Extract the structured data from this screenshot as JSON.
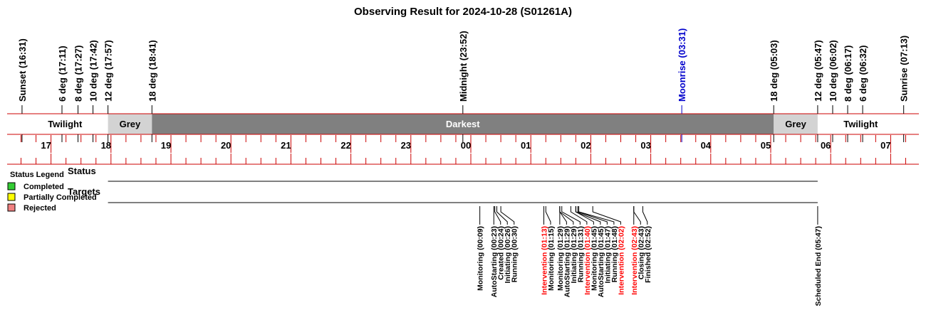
{
  "title": "Observing Result for 2024-10-28 (S01261A)",
  "chart_data": {
    "type": "timeline",
    "axis": {
      "hour_labels": [
        "17",
        "18",
        "19",
        "20",
        "21",
        "22",
        "23",
        "00",
        "01",
        "02",
        "03",
        "04",
        "05",
        "06",
        "07"
      ],
      "hour_values": [
        17,
        18,
        19,
        20,
        21,
        22,
        23,
        24,
        25,
        26,
        27,
        28,
        29,
        30,
        31
      ],
      "range": [
        16.42,
        31.35
      ]
    },
    "twilight_markers": [
      {
        "label": "Sunset (16:31)",
        "t": 16.517
      },
      {
        "label": "6 deg (17:11)",
        "t": 17.183
      },
      {
        "label": "8 deg (17:27)",
        "t": 17.45
      },
      {
        "label": "10 deg (17:42)",
        "t": 17.7
      },
      {
        "label": "12 deg (17:57)",
        "t": 17.95
      },
      {
        "label": "18 deg (18:41)",
        "t": 18.683
      },
      {
        "label": "Midnight (23:52)",
        "t": 23.867
      },
      {
        "label": "Moonrise (03:31)",
        "t": 27.517,
        "color": "#0000cc"
      },
      {
        "label": "18 deg (05:03)",
        "t": 29.05
      },
      {
        "label": "12 deg (05:47)",
        "t": 29.783
      },
      {
        "label": "10 deg (06:02)",
        "t": 30.033
      },
      {
        "label": "8 deg (06:17)",
        "t": 30.283
      },
      {
        "label": "6 deg (06:32)",
        "t": 30.533
      },
      {
        "label": "Sunrise (07:13)",
        "t": 31.217
      }
    ],
    "bands": [
      {
        "label": "Twilight",
        "start": 16.517,
        "end": 17.95,
        "color": "#ffffff",
        "text_color": "#000000"
      },
      {
        "label": "Grey",
        "start": 17.95,
        "end": 18.683,
        "color": "#d3d3d3",
        "text_color": "#000000"
      },
      {
        "label": "Darkest",
        "start": 18.683,
        "end": 29.05,
        "color": "#808080",
        "text_color": "#ffffff"
      },
      {
        "label": "Grey",
        "start": 29.05,
        "end": 29.783,
        "color": "#d3d3d3",
        "text_color": "#000000"
      },
      {
        "label": "Twilight",
        "start": 29.783,
        "end": 31.217,
        "color": "#ffffff",
        "text_color": "#000000"
      }
    ],
    "rows": [
      "Status",
      "Targets"
    ],
    "row_span": {
      "start": 17.95,
      "end": 29.783
    },
    "events": [
      {
        "label": "Monitoring (00:09)",
        "t": 24.15
      },
      {
        "label": "AutoStarting (00:23)",
        "t": 24.383
      },
      {
        "label": "Created (00:24)",
        "t": 24.4
      },
      {
        "label": "Initiating (00:26)",
        "t": 24.433
      },
      {
        "label": "Running (00:30)",
        "t": 24.5
      },
      {
        "label": "Intervention (01:13)",
        "t": 25.217,
        "color": "#ff0000"
      },
      {
        "label": "Monitoring (01:15)",
        "t": 25.25
      },
      {
        "label": "Monitoring (01:29)",
        "t": 25.483
      },
      {
        "label": "AutoStarting (01:29)",
        "t": 25.483
      },
      {
        "label": "Initiating (01:29)",
        "t": 25.483
      },
      {
        "label": "Running (01:31)",
        "t": 25.517
      },
      {
        "label": "Intervention (01:40)",
        "t": 25.667,
        "color": "#ff0000"
      },
      {
        "label": "Monitoring (01:45)",
        "t": 25.75
      },
      {
        "label": "AutoStarting (01:45)",
        "t": 25.75
      },
      {
        "label": "Initiating (01:47)",
        "t": 25.783
      },
      {
        "label": "Running (01:48)",
        "t": 25.8
      },
      {
        "label": "Intervention (02:02)",
        "t": 26.033,
        "color": "#ff0000"
      },
      {
        "label": "Intervention (02:43)",
        "t": 26.717,
        "color": "#ff0000"
      },
      {
        "label": "Closing (02:43)",
        "t": 26.717
      },
      {
        "label": "Finished (02:52)",
        "t": 26.867
      },
      {
        "label": "Scheduled End (05:47)",
        "t": 29.783
      }
    ],
    "legend": {
      "title": "Status Legend",
      "placement": "left",
      "items": [
        {
          "label": "Completed",
          "color": "#33cc33"
        },
        {
          "label": "Partially Completed",
          "color": "#ffff00"
        },
        {
          "label": "Rejected",
          "color": "#f08080"
        }
      ]
    },
    "colors": {
      "axis": "#cc0000",
      "text": "#000000"
    }
  }
}
